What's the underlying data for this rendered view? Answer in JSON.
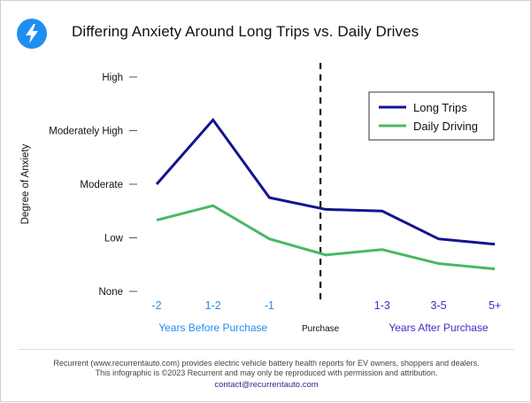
{
  "header": {
    "title": "Differing Anxiety Around Long Trips vs. Daily Drives"
  },
  "chart_data": {
    "type": "line",
    "title": "Differing Anxiety Around Long Trips vs. Daily Drives",
    "ylabel": "Degree of Anxiety",
    "y_ticks": [
      "None",
      "Low",
      "Moderate",
      "Moderately High",
      "High"
    ],
    "ylim": [
      0,
      4
    ],
    "x_positions": [
      0,
      1,
      2,
      3,
      4,
      5,
      6
    ],
    "categories": [
      "-2",
      "1-2",
      "-1",
      "",
      "1-3",
      "3-5",
      "5+"
    ],
    "category_colors": [
      "#1f8ef1",
      "#1f8ef1",
      "#1f8ef1",
      "",
      "#3b2fc9",
      "#3b2fc9",
      "#3b2fc9"
    ],
    "group_labels": [
      {
        "text": "Years Before Purchase",
        "color": "#1f8ef1",
        "center": 1
      },
      {
        "text": "Purchase",
        "color": "#111111",
        "center": 3
      },
      {
        "text": "Years After Purchase",
        "color": "#3b2fc9",
        "center": 5
      }
    ],
    "divider_at": 3,
    "series": [
      {
        "name": "Long Trips",
        "color": "#14148f",
        "x": [
          0,
          1,
          2,
          3,
          4,
          5,
          6
        ],
        "values": [
          2.0,
          3.2,
          1.75,
          1.53,
          1.5,
          0.98,
          0.88
        ]
      },
      {
        "name": "Daily Driving",
        "color": "#48b866",
        "x": [
          0,
          1,
          2,
          3,
          4,
          5,
          6
        ],
        "values": [
          1.33,
          1.6,
          0.98,
          0.68,
          0.78,
          0.52,
          0.42
        ]
      }
    ],
    "legend": "top-right",
    "grid": false
  },
  "footer": {
    "line1": "Recurrent (www.recurrentauto.com) provides electric vehicle battery health reports for EV owners, shoppers and dealers.",
    "line2": "This infographic is ©2023 Recurrent and may only be reproduced with permission and attribution.",
    "contact": "contact@recurrentauto.com"
  }
}
